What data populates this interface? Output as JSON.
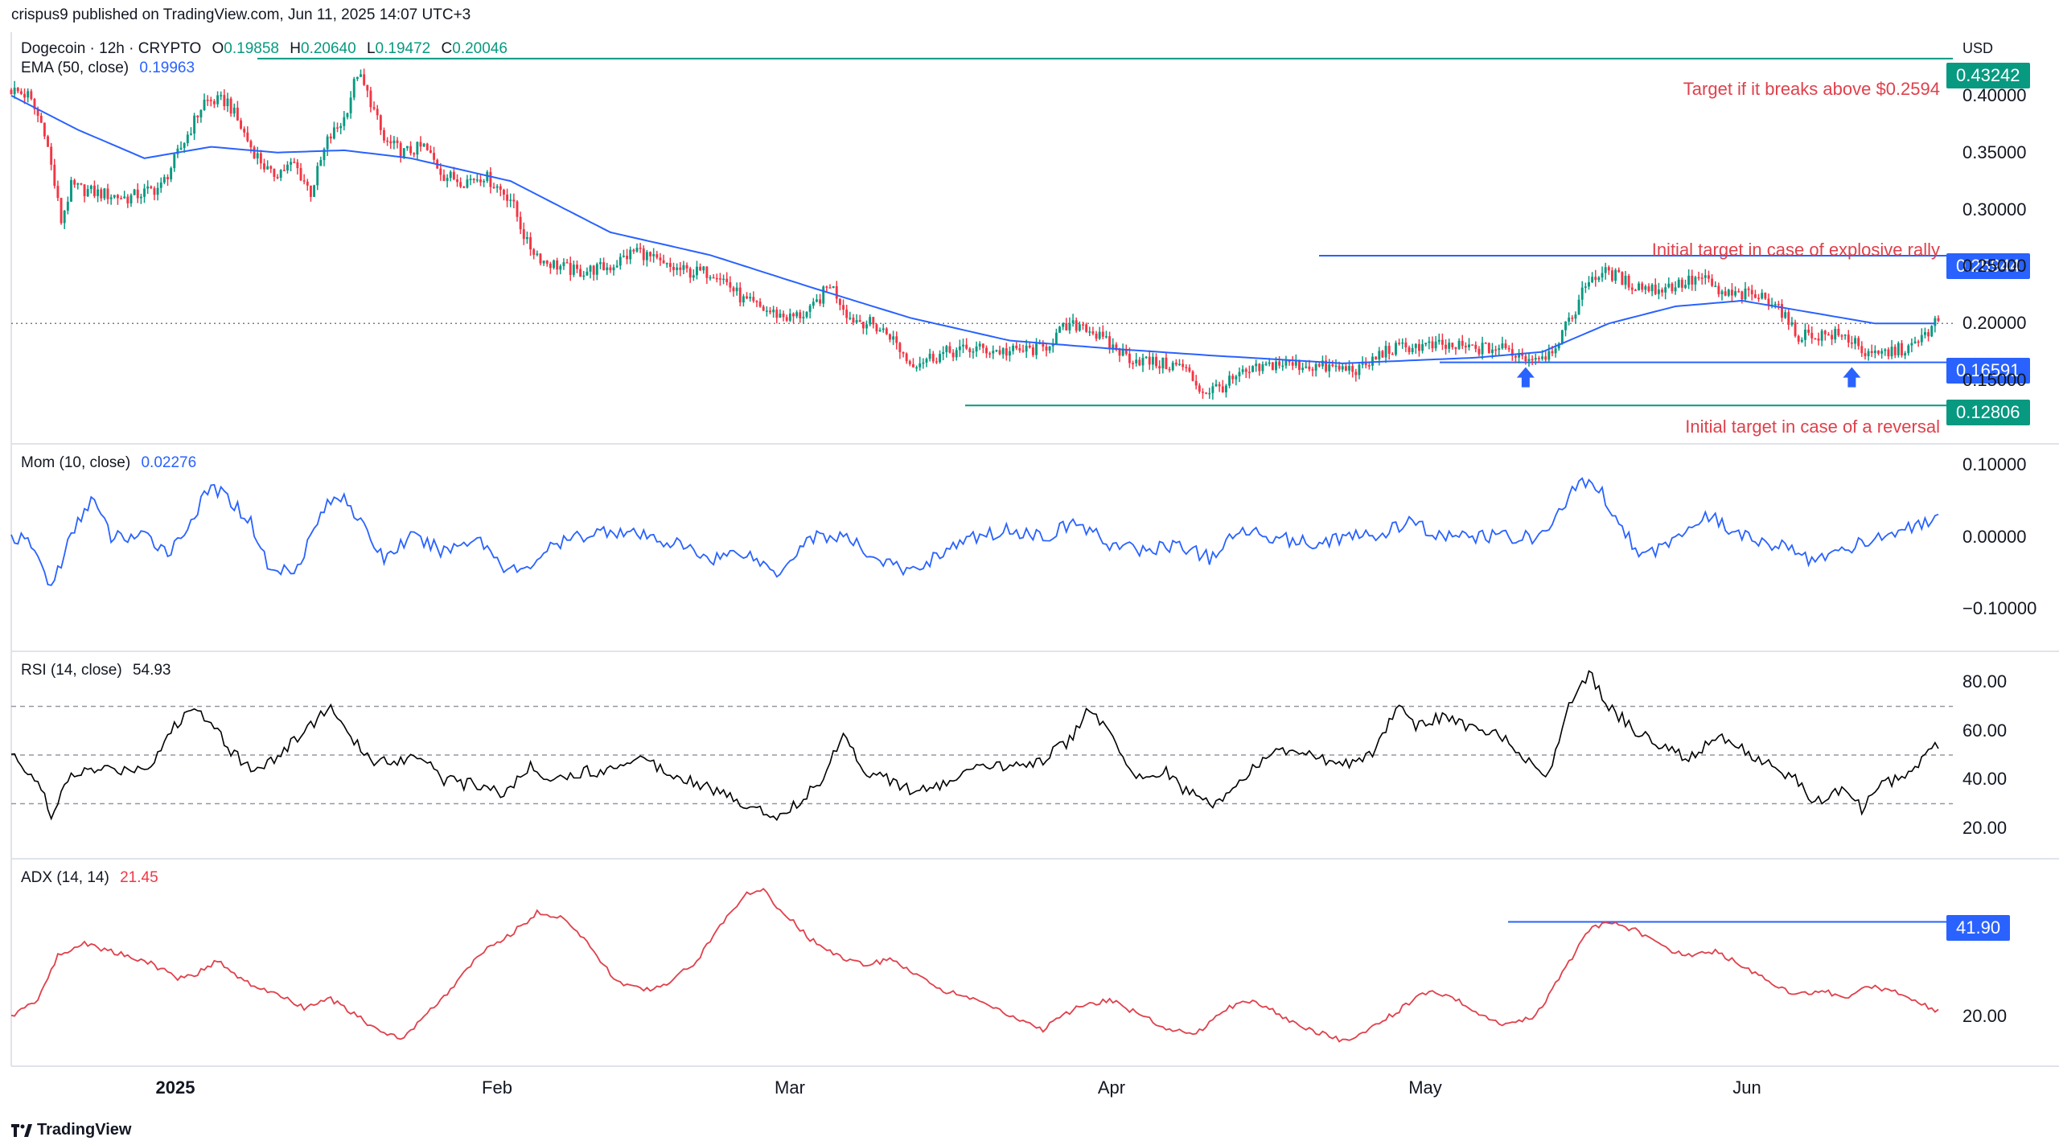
{
  "header": {
    "published": "crispus9 published on TradingView.com, Jun 11, 2025 14:07 UTC+3",
    "symbol": "Dogecoin · 12h · CRYPTO",
    "o_label": "O",
    "o_value": "0.19858",
    "h_label": "H",
    "h_value": "0.20640",
    "l_label": "L",
    "l_value": "0.19472",
    "c_label": "C",
    "c_value": "0.20046",
    "ema_label": "EMA (50, close)",
    "ema_value": "0.19963",
    "currency": "USD"
  },
  "annotations": {
    "target_above": "Target if it breaks above $0.2594",
    "explosive": "Initial target in case of explosive rally",
    "reversal": "Initial target in case of a reversal"
  },
  "badges": {
    "top": "0.43242",
    "upper": "0.25944",
    "support": "0.16591",
    "lower": "0.12806",
    "adx_level": "41.90"
  },
  "panes": {
    "mom_label": "Mom (10, close)",
    "mom_value": "0.02276",
    "rsi_label": "RSI (14, close)",
    "rsi_value": "54.93",
    "adx_label": "ADX (14, 14)",
    "adx_value": "21.45"
  },
  "brand": "TradingView",
  "colors": {
    "up": "#089981",
    "down": "#f23645",
    "ema": "#2962ff",
    "mom": "#2962ff",
    "rsi": "#000000",
    "adx": "#e0404b",
    "annotation": "#e0404b",
    "green_line": "#089981",
    "blue_line": "#2962ff"
  },
  "chart_data": [
    {
      "type": "candlestick",
      "title": "Dogecoin · 12h · CRYPTO",
      "ylabel": "USD",
      "ylim": [
        0.1,
        0.45
      ],
      "y_ticks": [
        "0.40000",
        "0.35000",
        "0.30000",
        "0.25000",
        "0.20000",
        "0.15000"
      ],
      "x_ticks": [
        "2025",
        "Feb",
        "Mar",
        "Apr",
        "May",
        "Jun"
      ],
      "close_path": [
        [
          0,
          0.405
        ],
        [
          5,
          0.4
        ],
        [
          10,
          0.37
        ],
        [
          15,
          0.29
        ],
        [
          18,
          0.32
        ],
        [
          25,
          0.315
        ],
        [
          35,
          0.31
        ],
        [
          45,
          0.32
        ],
        [
          52,
          0.36
        ],
        [
          58,
          0.395
        ],
        [
          65,
          0.395
        ],
        [
          72,
          0.355
        ],
        [
          78,
          0.33
        ],
        [
          85,
          0.34
        ],
        [
          90,
          0.315
        ],
        [
          95,
          0.36
        ],
        [
          100,
          0.38
        ],
        [
          104,
          0.42
        ],
        [
          108,
          0.395
        ],
        [
          112,
          0.36
        ],
        [
          118,
          0.35
        ],
        [
          124,
          0.355
        ],
        [
          130,
          0.33
        ],
        [
          136,
          0.325
        ],
        [
          142,
          0.33
        ],
        [
          150,
          0.31
        ],
        [
          155,
          0.27
        ],
        [
          160,
          0.255
        ],
        [
          170,
          0.245
        ],
        [
          180,
          0.25
        ],
        [
          188,
          0.265
        ],
        [
          196,
          0.25
        ],
        [
          204,
          0.245
        ],
        [
          212,
          0.245
        ],
        [
          220,
          0.22
        ],
        [
          228,
          0.21
        ],
        [
          234,
          0.205
        ],
        [
          240,
          0.21
        ],
        [
          246,
          0.235
        ],
        [
          252,
          0.205
        ],
        [
          258,
          0.2
        ],
        [
          264,
          0.19
        ],
        [
          270,
          0.165
        ],
        [
          276,
          0.17
        ],
        [
          282,
          0.175
        ],
        [
          290,
          0.178
        ],
        [
          300,
          0.175
        ],
        [
          310,
          0.178
        ],
        [
          316,
          0.195
        ],
        [
          322,
          0.2
        ],
        [
          328,
          0.185
        ],
        [
          336,
          0.17
        ],
        [
          344,
          0.165
        ],
        [
          352,
          0.162
        ],
        [
          358,
          0.14
        ],
        [
          364,
          0.145
        ],
        [
          370,
          0.155
        ],
        [
          380,
          0.165
        ],
        [
          390,
          0.163
        ],
        [
          400,
          0.16
        ],
        [
          406,
          0.16
        ],
        [
          412,
          0.175
        ],
        [
          420,
          0.18
        ],
        [
          430,
          0.18
        ],
        [
          440,
          0.178
        ],
        [
          448,
          0.178
        ],
        [
          456,
          0.17
        ],
        [
          462,
          0.174
        ],
        [
          468,
          0.2
        ],
        [
          474,
          0.24
        ],
        [
          480,
          0.245
        ],
        [
          486,
          0.235
        ],
        [
          494,
          0.23
        ],
        [
          502,
          0.235
        ],
        [
          508,
          0.24
        ],
        [
          514,
          0.225
        ],
        [
          522,
          0.225
        ],
        [
          530,
          0.22
        ],
        [
          536,
          0.19
        ],
        [
          542,
          0.19
        ],
        [
          548,
          0.19
        ],
        [
          554,
          0.185
        ],
        [
          558,
          0.17
        ],
        [
          564,
          0.175
        ],
        [
          572,
          0.18
        ],
        [
          578,
          0.2
        ]
      ],
      "ema_path": [
        [
          0,
          0.4
        ],
        [
          20,
          0.37
        ],
        [
          40,
          0.345
        ],
        [
          60,
          0.355
        ],
        [
          80,
          0.35
        ],
        [
          100,
          0.352
        ],
        [
          120,
          0.345
        ],
        [
          150,
          0.325
        ],
        [
          180,
          0.28
        ],
        [
          210,
          0.26
        ],
        [
          240,
          0.232
        ],
        [
          270,
          0.205
        ],
        [
          300,
          0.185
        ],
        [
          330,
          0.178
        ],
        [
          360,
          0.172
        ],
        [
          400,
          0.165
        ],
        [
          440,
          0.17
        ],
        [
          460,
          0.175
        ],
        [
          480,
          0.2
        ],
        [
          500,
          0.215
        ],
        [
          520,
          0.22
        ],
        [
          540,
          0.21
        ],
        [
          560,
          0.2
        ],
        [
          578,
          0.2
        ]
      ],
      "levels": [
        0.43242,
        0.25944,
        0.16591,
        0.12806
      ],
      "arrows_at": [
        455,
        553
      ]
    },
    {
      "type": "line",
      "title": "Mom (10, close)",
      "ylim": [
        -0.15,
        0.12
      ],
      "y_ticks": [
        "0.10000",
        "0.00000",
        "−0.10000"
      ],
      "values": [
        [
          0,
          0.0
        ],
        [
          6,
          -0.01
        ],
        [
          12,
          -0.07
        ],
        [
          18,
          0.0
        ],
        [
          24,
          0.055
        ],
        [
          30,
          0.0
        ],
        [
          40,
          0.0
        ],
        [
          48,
          -0.02
        ],
        [
          55,
          0.03
        ],
        [
          60,
          0.07
        ],
        [
          66,
          0.05
        ],
        [
          72,
          0.02
        ],
        [
          78,
          -0.05
        ],
        [
          86,
          -0.04
        ],
        [
          94,
          0.04
        ],
        [
          100,
          0.06
        ],
        [
          106,
          0.01
        ],
        [
          112,
          -0.03
        ],
        [
          120,
          0.0
        ],
        [
          130,
          -0.02
        ],
        [
          140,
          0.0
        ],
        [
          148,
          -0.04
        ],
        [
          154,
          -0.05
        ],
        [
          160,
          -0.02
        ],
        [
          170,
          0.0
        ],
        [
          180,
          0.01
        ],
        [
          190,
          0.0
        ],
        [
          200,
          -0.01
        ],
        [
          210,
          -0.03
        ],
        [
          220,
          -0.02
        ],
        [
          230,
          -0.05
        ],
        [
          240,
          0.0
        ],
        [
          250,
          0.0
        ],
        [
          260,
          -0.03
        ],
        [
          270,
          -0.05
        ],
        [
          280,
          -0.02
        ],
        [
          290,
          0.0
        ],
        [
          300,
          0.01
        ],
        [
          310,
          0.0
        ],
        [
          320,
          0.02
        ],
        [
          330,
          -0.01
        ],
        [
          340,
          -0.02
        ],
        [
          350,
          -0.01
        ],
        [
          360,
          -0.03
        ],
        [
          370,
          0.01
        ],
        [
          380,
          0.0
        ],
        [
          390,
          -0.01
        ],
        [
          400,
          0.0
        ],
        [
          410,
          0.0
        ],
        [
          420,
          0.02
        ],
        [
          430,
          0.0
        ],
        [
          440,
          0.0
        ],
        [
          450,
          0.0
        ],
        [
          460,
          0.0
        ],
        [
          466,
          0.04
        ],
        [
          472,
          0.08
        ],
        [
          478,
          0.06
        ],
        [
          486,
          0.0
        ],
        [
          490,
          -0.03
        ],
        [
          500,
          0.0
        ],
        [
          510,
          0.03
        ],
        [
          520,
          0.0
        ],
        [
          530,
          -0.01
        ],
        [
          540,
          -0.03
        ],
        [
          550,
          -0.02
        ],
        [
          560,
          0.0
        ],
        [
          570,
          0.01
        ],
        [
          578,
          0.02276
        ]
      ]
    },
    {
      "type": "line",
      "title": "RSI (14, close)",
      "ylim": [
        10,
        90
      ],
      "y_ticks": [
        "80.00",
        "60.00",
        "40.00",
        "20.00"
      ],
      "guides": [
        70,
        50,
        30
      ],
      "values": [
        [
          0,
          50
        ],
        [
          8,
          40
        ],
        [
          12,
          24
        ],
        [
          18,
          42
        ],
        [
          26,
          44
        ],
        [
          34,
          44
        ],
        [
          42,
          46
        ],
        [
          48,
          60
        ],
        [
          54,
          69
        ],
        [
          60,
          65
        ],
        [
          66,
          52
        ],
        [
          72,
          44
        ],
        [
          80,
          49
        ],
        [
          88,
          60
        ],
        [
          96,
          70
        ],
        [
          102,
          56
        ],
        [
          110,
          47
        ],
        [
          116,
          48
        ],
        [
          124,
          50
        ],
        [
          130,
          40
        ],
        [
          136,
          38
        ],
        [
          142,
          38
        ],
        [
          148,
          34
        ],
        [
          156,
          45
        ],
        [
          164,
          40
        ],
        [
          172,
          43
        ],
        [
          180,
          44
        ],
        [
          188,
          50
        ],
        [
          196,
          44
        ],
        [
          204,
          40
        ],
        [
          212,
          35
        ],
        [
          220,
          30
        ],
        [
          230,
          25
        ],
        [
          236,
          30
        ],
        [
          244,
          40
        ],
        [
          250,
          60
        ],
        [
          256,
          44
        ],
        [
          264,
          40
        ],
        [
          272,
          34
        ],
        [
          280,
          38
        ],
        [
          290,
          44
        ],
        [
          300,
          46
        ],
        [
          310,
          48
        ],
        [
          318,
          56
        ],
        [
          324,
          70
        ],
        [
          330,
          58
        ],
        [
          338,
          40
        ],
        [
          346,
          44
        ],
        [
          354,
          34
        ],
        [
          362,
          30
        ],
        [
          370,
          40
        ],
        [
          380,
          52
        ],
        [
          390,
          50
        ],
        [
          400,
          46
        ],
        [
          410,
          52
        ],
        [
          416,
          70
        ],
        [
          422,
          62
        ],
        [
          430,
          66
        ],
        [
          440,
          60
        ],
        [
          448,
          58
        ],
        [
          456,
          48
        ],
        [
          462,
          42
        ],
        [
          466,
          62
        ],
        [
          470,
          76
        ],
        [
          474,
          84
        ],
        [
          480,
          70
        ],
        [
          488,
          60
        ],
        [
          496,
          54
        ],
        [
          504,
          48
        ],
        [
          512,
          58
        ],
        [
          520,
          52
        ],
        [
          528,
          46
        ],
        [
          536,
          40
        ],
        [
          542,
          30
        ],
        [
          550,
          36
        ],
        [
          556,
          28
        ],
        [
          562,
          38
        ],
        [
          570,
          42
        ],
        [
          578,
          54.93
        ]
      ]
    },
    {
      "type": "line",
      "title": "ADX (14, 14)",
      "ylim": [
        10,
        55
      ],
      "y_ticks": [
        "20.00"
      ],
      "level": 41.9,
      "values": [
        [
          0,
          20
        ],
        [
          8,
          24
        ],
        [
          14,
          34
        ],
        [
          22,
          37
        ],
        [
          30,
          35
        ],
        [
          40,
          33
        ],
        [
          50,
          29
        ],
        [
          56,
          30
        ],
        [
          62,
          33
        ],
        [
          70,
          28
        ],
        [
          80,
          25
        ],
        [
          88,
          22
        ],
        [
          96,
          24
        ],
        [
          104,
          20
        ],
        [
          112,
          16
        ],
        [
          118,
          15
        ],
        [
          124,
          20
        ],
        [
          132,
          26
        ],
        [
          140,
          34
        ],
        [
          150,
          39
        ],
        [
          158,
          44
        ],
        [
          166,
          43
        ],
        [
          174,
          36
        ],
        [
          182,
          28
        ],
        [
          190,
          26
        ],
        [
          198,
          28
        ],
        [
          206,
          33
        ],
        [
          214,
          42
        ],
        [
          220,
          48
        ],
        [
          226,
          49
        ],
        [
          232,
          44
        ],
        [
          240,
          38
        ],
        [
          248,
          34
        ],
        [
          256,
          32
        ],
        [
          264,
          33
        ],
        [
          272,
          30
        ],
        [
          280,
          26
        ],
        [
          290,
          24
        ],
        [
          300,
          20
        ],
        [
          310,
          17
        ],
        [
          320,
          22
        ],
        [
          330,
          24
        ],
        [
          340,
          20
        ],
        [
          348,
          17
        ],
        [
          356,
          16
        ],
        [
          362,
          20
        ],
        [
          370,
          24
        ],
        [
          378,
          22
        ],
        [
          386,
          18
        ],
        [
          394,
          16
        ],
        [
          402,
          14
        ],
        [
          410,
          18
        ],
        [
          418,
          22
        ],
        [
          426,
          26
        ],
        [
          434,
          24
        ],
        [
          442,
          20
        ],
        [
          450,
          18
        ],
        [
          458,
          20
        ],
        [
          466,
          30
        ],
        [
          474,
          40
        ],
        [
          480,
          41.9
        ],
        [
          488,
          40
        ],
        [
          496,
          36
        ],
        [
          504,
          34
        ],
        [
          512,
          35
        ],
        [
          520,
          32
        ],
        [
          528,
          28
        ],
        [
          536,
          25
        ],
        [
          544,
          26
        ],
        [
          552,
          24
        ],
        [
          558,
          27
        ],
        [
          566,
          26
        ],
        [
          572,
          24
        ],
        [
          578,
          21.45
        ]
      ]
    }
  ]
}
